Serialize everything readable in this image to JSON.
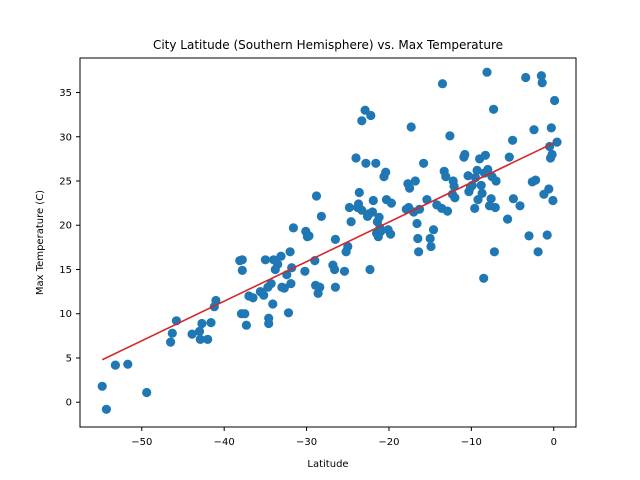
{
  "chart_data": {
    "type": "scatter",
    "title": "City Latitude (Southern Hemisphere) vs. Max Temperature",
    "xlabel": "Latitude",
    "ylabel": "Max Temperature (C)",
    "xlim": [
      -57.5,
      2.7
    ],
    "ylim": [
      -2.8,
      38.9
    ],
    "xticks": [
      -50,
      -40,
      -30,
      -20,
      -10,
      0
    ],
    "yticks": [
      0,
      5,
      10,
      15,
      20,
      25,
      30,
      35
    ],
    "grid": false,
    "colors": {
      "points": "#1f77b4",
      "regression": "#d62728"
    },
    "regression": {
      "x": [
        -54.8,
        0.0
      ],
      "y": [
        4.8,
        29.3
      ]
    },
    "points": [
      [
        -54.8,
        1.8
      ],
      [
        -54.3,
        -0.8
      ],
      [
        -53.2,
        4.2
      ],
      [
        -51.7,
        4.3
      ],
      [
        -49.4,
        1.1
      ],
      [
        -46.5,
        6.8
      ],
      [
        -46.3,
        7.8
      ],
      [
        -45.8,
        9.2
      ],
      [
        -43.9,
        7.7
      ],
      [
        -43.0,
        8.0
      ],
      [
        -42.9,
        7.1
      ],
      [
        -42.7,
        8.9
      ],
      [
        -42.0,
        7.1
      ],
      [
        -41.6,
        9.0
      ],
      [
        -41.2,
        10.8
      ],
      [
        -41.0,
        11.5
      ],
      [
        -38.1,
        16.0
      ],
      [
        -37.9,
        10.0
      ],
      [
        -37.8,
        14.9
      ],
      [
        -37.8,
        16.1
      ],
      [
        -37.5,
        10.0
      ],
      [
        -37.3,
        8.7
      ],
      [
        -37.0,
        12.0
      ],
      [
        -36.5,
        11.8
      ],
      [
        -35.6,
        12.5
      ],
      [
        -35.2,
        12.1
      ],
      [
        -35.0,
        16.1
      ],
      [
        -34.7,
        13.0
      ],
      [
        -34.6,
        9.5
      ],
      [
        -34.6,
        8.9
      ],
      [
        -34.3,
        13.4
      ],
      [
        -34.1,
        11.1
      ],
      [
        -34.0,
        16.1
      ],
      [
        -33.8,
        15.0
      ],
      [
        -33.5,
        15.6
      ],
      [
        -33.1,
        16.5
      ],
      [
        -33.0,
        13.0
      ],
      [
        -32.7,
        12.9
      ],
      [
        -32.4,
        14.4
      ],
      [
        -32.2,
        10.1
      ],
      [
        -32.0,
        17.0
      ],
      [
        -31.9,
        13.4
      ],
      [
        -31.8,
        15.2
      ],
      [
        -31.6,
        19.7
      ],
      [
        -30.2,
        14.8
      ],
      [
        -30.1,
        19.3
      ],
      [
        -29.9,
        18.7
      ],
      [
        -29.7,
        18.8
      ],
      [
        -29.0,
        16.0
      ],
      [
        -28.9,
        13.2
      ],
      [
        -28.8,
        23.3
      ],
      [
        -28.6,
        12.3
      ],
      [
        -28.4,
        13.0
      ],
      [
        -28.2,
        21.0
      ],
      [
        -26.8,
        15.5
      ],
      [
        -26.6,
        15.0
      ],
      [
        -26.5,
        18.4
      ],
      [
        -26.5,
        13.0
      ],
      [
        -25.4,
        14.8
      ],
      [
        -25.2,
        17.0
      ],
      [
        -25.0,
        17.6
      ],
      [
        -24.8,
        22.0
      ],
      [
        -24.6,
        20.4
      ],
      [
        -24.0,
        27.6
      ],
      [
        -23.8,
        22.0
      ],
      [
        -23.7,
        22.4
      ],
      [
        -23.6,
        23.7
      ],
      [
        -23.3,
        21.7
      ],
      [
        -23.3,
        31.8
      ],
      [
        -22.9,
        33.0
      ],
      [
        -22.8,
        27.0
      ],
      [
        -22.6,
        21.0
      ],
      [
        -22.4,
        21.3
      ],
      [
        -22.3,
        15.0
      ],
      [
        -22.2,
        32.4
      ],
      [
        -22.0,
        21.5
      ],
      [
        -21.9,
        22.8
      ],
      [
        -21.6,
        27.0
      ],
      [
        -21.5,
        19.1
      ],
      [
        -21.4,
        20.4
      ],
      [
        -21.3,
        18.7
      ],
      [
        -21.2,
        20.9
      ],
      [
        -21.1,
        19.7
      ],
      [
        -21.0,
        19.3
      ],
      [
        -20.6,
        25.5
      ],
      [
        -20.4,
        26.0
      ],
      [
        -20.3,
        22.9
      ],
      [
        -20.1,
        19.5
      ],
      [
        -19.8,
        19.0
      ],
      [
        -19.7,
        22.5
      ],
      [
        -17.9,
        21.8
      ],
      [
        -17.7,
        24.7
      ],
      [
        -17.6,
        22.0
      ],
      [
        -17.5,
        24.2
      ],
      [
        -17.3,
        31.1
      ],
      [
        -17.0,
        21.5
      ],
      [
        -16.8,
        25.0
      ],
      [
        -16.6,
        20.2
      ],
      [
        -16.5,
        18.5
      ],
      [
        -16.4,
        17.0
      ],
      [
        -16.3,
        21.8
      ],
      [
        -15.8,
        27.0
      ],
      [
        -15.4,
        22.9
      ],
      [
        -15.0,
        18.5
      ],
      [
        -14.9,
        17.6
      ],
      [
        -14.6,
        19.5
      ],
      [
        -14.2,
        22.3
      ],
      [
        -13.6,
        21.9
      ],
      [
        -13.5,
        36.0
      ],
      [
        -13.3,
        26.1
      ],
      [
        -13.1,
        25.5
      ],
      [
        -12.9,
        21.6
      ],
      [
        -12.6,
        30.1
      ],
      [
        -12.3,
        23.5
      ],
      [
        -12.2,
        25.0
      ],
      [
        -12.1,
        24.4
      ],
      [
        -12.0,
        23.1
      ],
      [
        -10.9,
        27.7
      ],
      [
        -10.8,
        28.0
      ],
      [
        -10.4,
        25.6
      ],
      [
        -10.3,
        23.8
      ],
      [
        -10.1,
        24.3
      ],
      [
        -9.9,
        24.5
      ],
      [
        -9.6,
        21.9
      ],
      [
        -9.5,
        25.4
      ],
      [
        -9.3,
        26.2
      ],
      [
        -9.2,
        22.9
      ],
      [
        -9.0,
        27.5
      ],
      [
        -8.8,
        24.5
      ],
      [
        -8.7,
        23.6
      ],
      [
        -8.5,
        14.0
      ],
      [
        -8.4,
        25.9
      ],
      [
        -8.3,
        27.9
      ],
      [
        -8.1,
        37.3
      ],
      [
        -8.0,
        26.3
      ],
      [
        -7.8,
        22.2
      ],
      [
        -7.6,
        23.0
      ],
      [
        -7.5,
        25.5
      ],
      [
        -7.3,
        33.1
      ],
      [
        -7.2,
        17.0
      ],
      [
        -7.1,
        22.0
      ],
      [
        -7.0,
        25.0
      ],
      [
        -5.6,
        20.7
      ],
      [
        -5.4,
        27.7
      ],
      [
        -5.0,
        29.6
      ],
      [
        -4.9,
        23.0
      ],
      [
        -4.1,
        22.2
      ],
      [
        -3.4,
        36.7
      ],
      [
        -3.0,
        18.8
      ],
      [
        -2.6,
        24.9
      ],
      [
        -2.4,
        30.8
      ],
      [
        -2.2,
        25.1
      ],
      [
        -1.9,
        17.0
      ],
      [
        -1.5,
        36.9
      ],
      [
        -1.4,
        36.1
      ],
      [
        -1.2,
        23.5
      ],
      [
        -0.8,
        18.9
      ],
      [
        -0.6,
        24.1
      ],
      [
        -0.5,
        28.9
      ],
      [
        -0.4,
        27.6
      ],
      [
        -0.3,
        31.0
      ],
      [
        -0.2,
        28.0
      ],
      [
        -0.1,
        22.8
      ],
      [
        0.1,
        34.1
      ],
      [
        0.4,
        29.4
      ]
    ]
  }
}
